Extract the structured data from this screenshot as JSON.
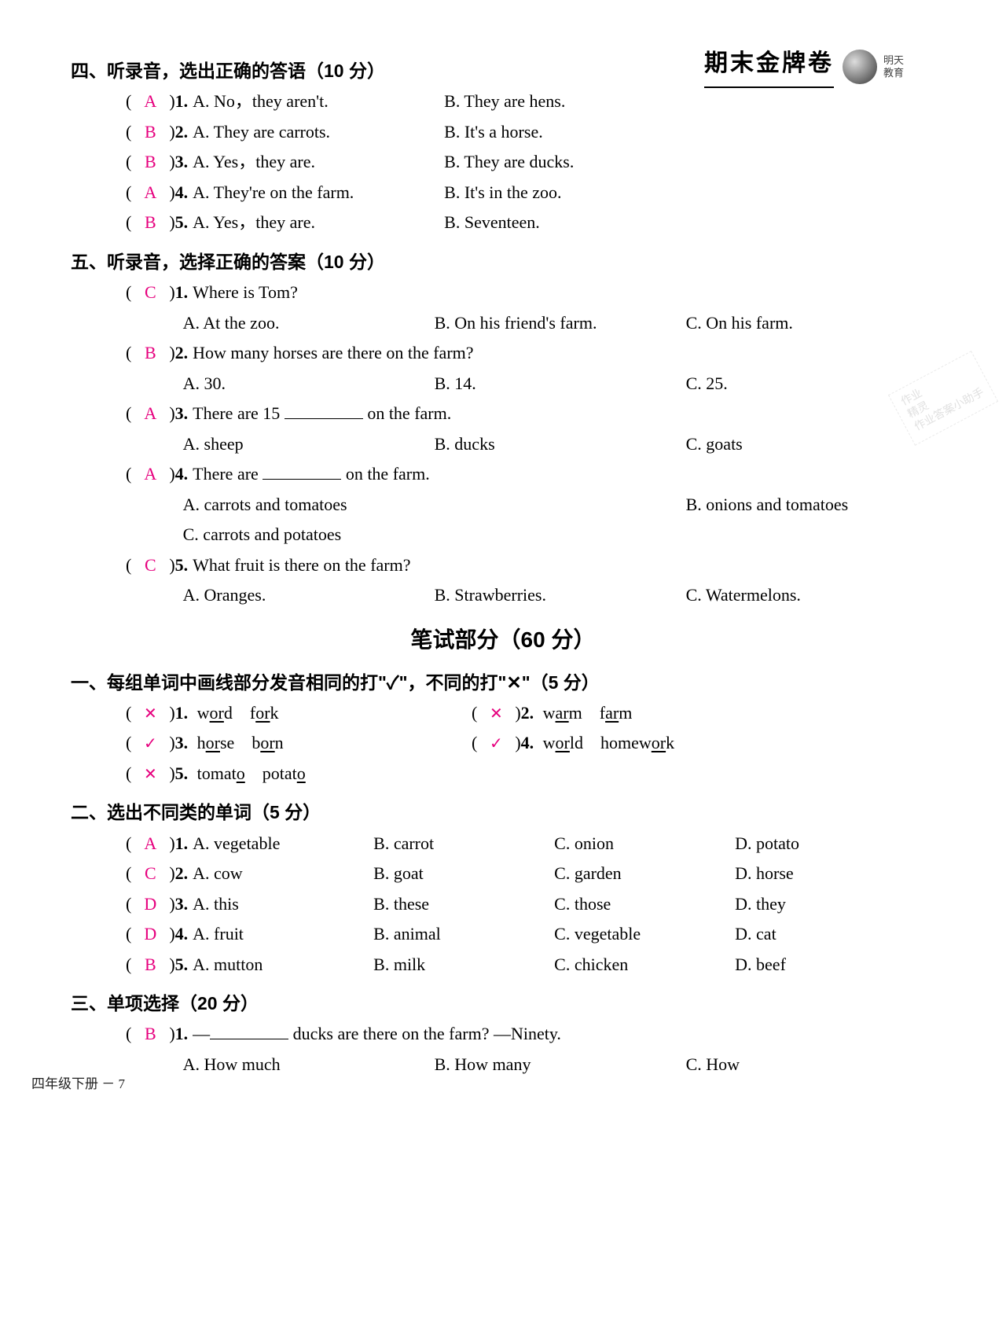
{
  "brand": {
    "title": "期末金牌卷",
    "sub1": "明天",
    "sub2": "教育"
  },
  "sec4": {
    "title": "四、听录音，选出正确的答语（10 分）",
    "items": [
      {
        "ans": "A",
        "num": "1.",
        "a": "A.  No，they aren't.",
        "b": "B.  They are hens."
      },
      {
        "ans": "B",
        "num": "2.",
        "a": "A.  They are carrots.",
        "b": "B.  It's a horse."
      },
      {
        "ans": "B",
        "num": "3.",
        "a": "A.  Yes，they are.",
        "b": "B.  They are ducks."
      },
      {
        "ans": "A",
        "num": "4.",
        "a": "A.  They're on the farm.",
        "b": "B.  It's in the zoo."
      },
      {
        "ans": "B",
        "num": "5.",
        "a": "A.  Yes，they are.",
        "b": "B.  Seventeen."
      }
    ]
  },
  "sec5": {
    "title": "五、听录音，选择正确的答案（10 分）",
    "items": [
      {
        "ans": "C",
        "num": "1.",
        "q": "Where is Tom?",
        "opts": [
          [
            "A.  At the zoo.",
            "B.  On his friend's farm.",
            "C.  On his farm."
          ]
        ]
      },
      {
        "ans": "B",
        "num": "2.",
        "q": "How many horses are there on the farm?",
        "opts": [
          [
            "A.  30.",
            "B.  14.",
            "C.  25."
          ]
        ]
      },
      {
        "ans": "A",
        "num": "3.",
        "q": "There are 15 ",
        "qAfter": " on the farm.",
        "opts": [
          [
            "A.  sheep",
            "B.  ducks",
            "C.  goats"
          ]
        ]
      },
      {
        "ans": "A",
        "num": "4.",
        "q": "There are ",
        "qAfter": " on the farm.",
        "opts": [
          [
            "A.  carrots and tomatoes",
            "",
            "B.  onions and tomatoes"
          ],
          [
            "C.  carrots and potatoes",
            "",
            ""
          ]
        ]
      },
      {
        "ans": "C",
        "num": "5.",
        "q": "What fruit is there on the farm?",
        "opts": [
          [
            "A.  Oranges.",
            "B.  Strawberries.",
            "C.  Watermelons."
          ]
        ]
      }
    ]
  },
  "writtenTitle": "笔试部分（60 分）",
  "w1": {
    "title": "一、每组单词中画线部分发音相同的打\"✓\"，不同的打\"✕\"（5 分）",
    "pairs": [
      {
        "l": {
          "ans": "✕",
          "num": "1.",
          "w1": "w",
          "u1": "or",
          "w1b": "d",
          "w2": "f",
          "u2": "or",
          "w2b": "k"
        },
        "r": {
          "ans": "✕",
          "num": "2.",
          "w1": "w",
          "u1": "ar",
          "w1b": "m",
          "w2": "f",
          "u2": "ar",
          "w2b": "m"
        }
      },
      {
        "l": {
          "ans": "✓",
          "num": "3.",
          "w1": "h",
          "u1": "or",
          "w1b": "se",
          "w2": "b",
          "u2": "or",
          "w2b": "n"
        },
        "r": {
          "ans": "✓",
          "num": "4.",
          "w1": "w",
          "u1": "or",
          "w1b": "ld",
          "w2": "homew",
          "u2": "or",
          "w2b": "k"
        }
      },
      {
        "l": {
          "ans": "✕",
          "num": "5.",
          "w1": "tomat",
          "u1": "o",
          "w1b": "",
          "w2": "potat",
          "u2": "o",
          "w2b": ""
        }
      }
    ]
  },
  "w2": {
    "title": "二、选出不同类的单词（5 分）",
    "items": [
      {
        "ans": "A",
        "num": "1.",
        "a": "A.  vegetable",
        "b": "B.  carrot",
        "c": "C.  onion",
        "d": "D.  potato"
      },
      {
        "ans": "C",
        "num": "2.",
        "a": "A.  cow",
        "b": "B.  goat",
        "c": "C.  garden",
        "d": "D.  horse"
      },
      {
        "ans": "D",
        "num": "3.",
        "a": "A.  this",
        "b": "B.  these",
        "c": "C.  those",
        "d": "D.  they"
      },
      {
        "ans": "D",
        "num": "4.",
        "a": "A.  fruit",
        "b": "B.  animal",
        "c": "C.  vegetable",
        "d": "D.  cat"
      },
      {
        "ans": "B",
        "num": "5.",
        "a": "A.  mutton",
        "b": "B.  milk",
        "c": "C.  chicken",
        "d": "D.  beef"
      }
    ]
  },
  "w3": {
    "title": "三、单项选择（20 分）",
    "items": [
      {
        "ans": "B",
        "num": "1.",
        "q1": "—",
        "q2": " ducks are there on the farm?    —Ninety.",
        "opts": [
          [
            "A.  How much",
            "B.  How many",
            "C.  How"
          ]
        ]
      }
    ]
  },
  "footer": "四年级下册 － 7",
  "watermark": {
    "l1": "作业",
    "l2": "精灵",
    "l3": "作业答案小助手"
  }
}
